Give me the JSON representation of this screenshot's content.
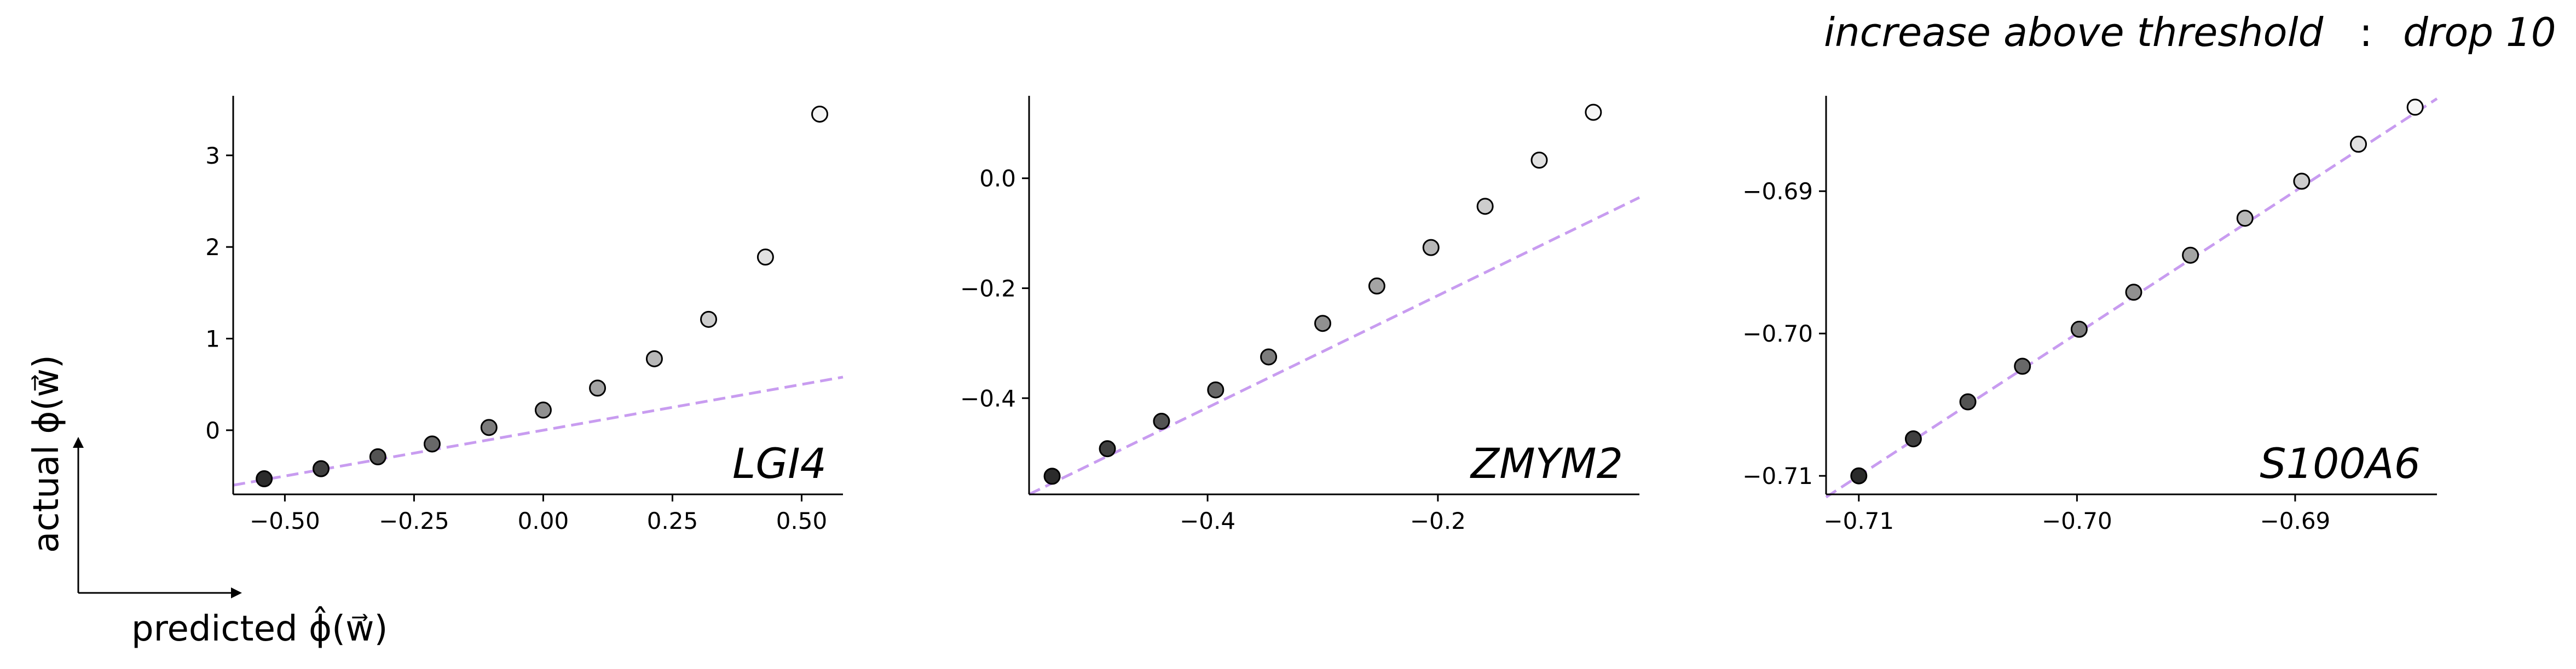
{
  "figure": {
    "title_left": "increase above threshold",
    "title_sep": ":",
    "title_right": "drop 10",
    "ylabel": "actual  ϕ(w⃗)",
    "xlabel": "predicted  ϕ̂(w⃗)"
  },
  "colors": {
    "reference_line": "#c89cf0",
    "point_edge": "#000000",
    "point_fill_dark": "#2b2b2b",
    "point_fill_light": "#f5f5f5"
  },
  "chart_data": [
    {
      "type": "scatter",
      "gene": "LGI4",
      "xlim": [
        -0.6,
        0.58
      ],
      "ylim": [
        -0.7,
        3.65
      ],
      "xticks": [
        -0.5,
        -0.25,
        0.0,
        0.25,
        0.5
      ],
      "xtick_labels": [
        "−0.50",
        "−0.25",
        "0.00",
        "0.25",
        "0.50"
      ],
      "yticks": [
        0,
        1,
        2,
        3
      ],
      "ytick_labels": [
        "0",
        "1",
        "2",
        "3"
      ],
      "reference_line": {
        "style": "dashed",
        "x": [
          -0.6,
          0.58
        ],
        "y": [
          -0.6,
          0.58
        ]
      },
      "points": {
        "x": [
          -0.54,
          -0.43,
          -0.32,
          -0.215,
          -0.105,
          0.0,
          0.105,
          0.215,
          0.32,
          0.43,
          0.535
        ],
        "y": [
          -0.53,
          -0.42,
          -0.29,
          -0.15,
          0.03,
          0.22,
          0.46,
          0.78,
          1.21,
          1.89,
          3.45
        ]
      }
    },
    {
      "type": "scatter",
      "gene": "ZMYM2",
      "xlim": [
        -0.555,
        -0.025
      ],
      "ylim": [
        -0.575,
        0.15
      ],
      "xticks": [
        -0.4,
        -0.2
      ],
      "xtick_labels": [
        "−0.4",
        "−0.2"
      ],
      "yticks": [
        -0.4,
        -0.2,
        0.0
      ],
      "ytick_labels": [
        "−0.4",
        "−0.2",
        "0.0"
      ],
      "reference_line": {
        "style": "dashed",
        "x": [
          -0.555,
          -0.025
        ],
        "y": [
          -0.575,
          -0.035
        ]
      },
      "points": {
        "x": [
          -0.535,
          -0.487,
          -0.44,
          -0.393,
          -0.347,
          -0.3,
          -0.253,
          -0.206,
          -0.159,
          -0.112,
          -0.065
        ],
        "y": [
          -0.542,
          -0.492,
          -0.442,
          -0.385,
          -0.325,
          -0.264,
          -0.196,
          -0.126,
          -0.051,
          0.033,
          0.12
        ]
      }
    },
    {
      "type": "scatter",
      "gene": "S100A6",
      "xlim": [
        -0.7115,
        -0.6835
      ],
      "ylim": [
        -0.7113,
        -0.6833
      ],
      "xticks": [
        -0.71,
        -0.7,
        -0.69
      ],
      "xtick_labels": [
        "−0.71",
        "−0.70",
        "−0.69"
      ],
      "yticks": [
        -0.71,
        -0.7,
        -0.69
      ],
      "ytick_labels": [
        "−0.71",
        "−0.70",
        "−0.69"
      ],
      "reference_line": {
        "style": "dashed",
        "x": [
          -0.7115,
          -0.6835
        ],
        "y": [
          -0.7115,
          -0.6835
        ]
      },
      "points": {
        "x": [
          -0.71,
          -0.7075,
          -0.705,
          -0.7025,
          -0.6999,
          -0.6974,
          -0.6948,
          -0.6923,
          -0.6897,
          -0.6871,
          -0.6845
        ],
        "y": [
          -0.71,
          -0.7074,
          -0.7048,
          -0.7023,
          -0.6997,
          -0.6971,
          -0.6945,
          -0.6919,
          -0.6893,
          -0.6867,
          -0.6841
        ]
      }
    }
  ]
}
